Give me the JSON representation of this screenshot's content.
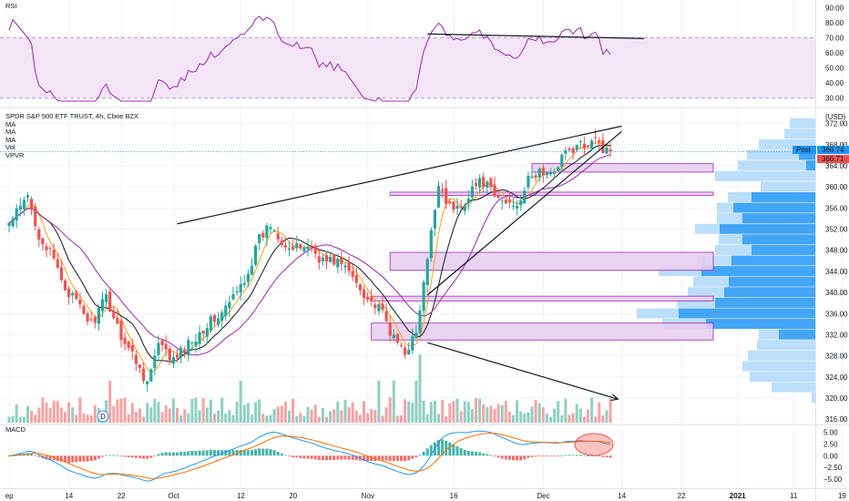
{
  "panes": {
    "rsi_label": "RSI",
    "macd_label": "MACD"
  },
  "legend": {
    "title": "SPDR S&P 500 ETF TRUST, 4h, Cboe BZX",
    "items": [
      "MA",
      "MA",
      "MA",
      "Vol",
      "VPVR"
    ]
  },
  "price_tags": {
    "currency": "USD",
    "post_label": "Post",
    "post_value": "366.74",
    "last_value": "366.71"
  },
  "colors": {
    "up": "#26a69a",
    "down": "#ef5350",
    "volume_up": "#8fcfc3",
    "volume_down": "#f5a3a3",
    "rsi_line": "#9c27b0",
    "rsi_band": "#f3e5f5",
    "ma_fast": "#f7a21b",
    "ma_mid": "#131722",
    "ma_slow": "#9c27b0",
    "vp_dark": "#42a5f5",
    "vp_light": "#bbdefb",
    "zone_fill": "#e6cdf0",
    "zone_stroke": "#9c27b0",
    "macd_line": "#2196f3",
    "signal_line": "#ff6d00",
    "post_tag": "#2196f3",
    "last_tag": "#ef5350"
  },
  "chart_data": {
    "type": "candlestick",
    "symbol": "SPDR S&P 500 ETF TRUST",
    "timeframe": "4h",
    "exchange": "Cboe BZX",
    "x_axis": {
      "tick_labels": [
        "ep",
        "14",
        "22",
        "Oct",
        "12",
        "20",
        "Nov",
        "16",
        "Dec",
        "14",
        "22",
        "2021",
        "11",
        "19"
      ],
      "tick_dates": [
        "2020-09-01",
        "2020-09-14",
        "2020-09-22",
        "2020-10-01",
        "2020-10-12",
        "2020-10-20",
        "2020-11-02",
        "2020-11-16",
        "2020-12-01",
        "2020-12-14",
        "2020-12-22",
        "2021-01-01",
        "2021-01-11",
        "2021-01-19"
      ]
    },
    "price_axis": {
      "unit": "USD",
      "ticks": [
        316,
        320,
        324,
        328,
        332,
        336,
        340,
        344,
        348,
        352,
        356,
        360,
        364,
        368,
        372
      ],
      "range": [
        315,
        374
      ]
    },
    "rsi_axis": {
      "ticks": [
        30,
        40,
        50,
        60,
        70,
        80,
        90
      ],
      "range": [
        25,
        95
      ],
      "band": [
        30,
        70
      ]
    },
    "macd_axis": {
      "ticks": [
        5.0,
        2.5,
        0.0,
        -2.5,
        -5.0
      ],
      "range": [
        -6.2,
        6.5
      ]
    },
    "price_anchors": [
      [
        0,
        353
      ],
      [
        3,
        356
      ],
      [
        5,
        358
      ],
      [
        8,
        351
      ],
      [
        12,
        346
      ],
      [
        15,
        341
      ],
      [
        18,
        338
      ],
      [
        22,
        334
      ],
      [
        26,
        339
      ],
      [
        30,
        332
      ],
      [
        34,
        327
      ],
      [
        37,
        323
      ],
      [
        40,
        330
      ],
      [
        44,
        327
      ],
      [
        49,
        331
      ],
      [
        53,
        334
      ],
      [
        57,
        336
      ],
      [
        61,
        340
      ],
      [
        64,
        344
      ],
      [
        67,
        350
      ],
      [
        70,
        353
      ],
      [
        73,
        350
      ],
      [
        76,
        348
      ],
      [
        80,
        349
      ],
      [
        84,
        346
      ],
      [
        88,
        346
      ],
      [
        92,
        343
      ],
      [
        96,
        339
      ],
      [
        100,
        336
      ],
      [
        103,
        331
      ],
      [
        106,
        329
      ],
      [
        109,
        332
      ],
      [
        112,
        346
      ],
      [
        115,
        361
      ],
      [
        118,
        356
      ],
      [
        121,
        356
      ],
      [
        124,
        360
      ],
      [
        127,
        361
      ],
      [
        130,
        358
      ],
      [
        133,
        357
      ],
      [
        136,
        357
      ],
      [
        139,
        361
      ],
      [
        142,
        363
      ],
      [
        145,
        362
      ],
      [
        148,
        366
      ],
      [
        151,
        367
      ],
      [
        154,
        368
      ],
      [
        157,
        370
      ],
      [
        159,
        367
      ],
      [
        161,
        366.7
      ]
    ],
    "ma_fast_period": 5,
    "ma_mid_period": 10,
    "ma_slow_period": 20,
    "volume_profile": [
      {
        "price": 372,
        "total": 28,
        "inner": 0
      },
      {
        "price": 370,
        "total": 34,
        "inner": 0
      },
      {
        "price": 368,
        "total": 62,
        "inner": 0
      },
      {
        "price": 366,
        "total": 75,
        "inner": 18
      },
      {
        "price": 364,
        "total": 85,
        "inner": 10
      },
      {
        "price": 362,
        "total": 110,
        "inner": 0
      },
      {
        "price": 360,
        "total": 60,
        "inner": 0
      },
      {
        "price": 358,
        "total": 96,
        "inner": 70
      },
      {
        "price": 356,
        "total": 108,
        "inner": 90
      },
      {
        "price": 354,
        "total": 108,
        "inner": 80
      },
      {
        "price": 352,
        "total": 132,
        "inner": 105
      },
      {
        "price": 350,
        "total": 106,
        "inner": 80
      },
      {
        "price": 348,
        "total": 110,
        "inner": 70
      },
      {
        "price": 346,
        "total": 130,
        "inner": 92
      },
      {
        "price": 344,
        "total": 172,
        "inner": 125
      },
      {
        "price": 342,
        "total": 134,
        "inner": 95
      },
      {
        "price": 340,
        "total": 140,
        "inner": 100
      },
      {
        "price": 338,
        "total": 152,
        "inner": 110
      },
      {
        "price": 336,
        "total": 196,
        "inner": 150
      },
      {
        "price": 334,
        "total": 168,
        "inner": 120
      },
      {
        "price": 332,
        "total": 62,
        "inner": 40
      },
      {
        "price": 330,
        "total": 64,
        "inner": 0
      },
      {
        "price": 328,
        "total": 74,
        "inner": 0
      },
      {
        "price": 326,
        "total": 80,
        "inner": 0
      },
      {
        "price": 324,
        "total": 72,
        "inner": 0
      },
      {
        "price": 322,
        "total": 48,
        "inner": 0
      },
      {
        "price": 320,
        "total": 4,
        "inner": 0
      }
    ],
    "zones": [
      {
        "from": 362.8,
        "to": 364.4
      },
      {
        "from": 358.4,
        "to": 359.0
      },
      {
        "from": 344.2,
        "to": 347.6
      },
      {
        "from": 338.4,
        "to": 339.3
      },
      {
        "from": 331.0,
        "to": 334.2
      }
    ],
    "trendlines": [
      {
        "series": "price",
        "from": [
          45,
          353.0
        ],
        "to": [
          164,
          371.5
        ]
      },
      {
        "series": "price",
        "from": [
          112,
          339.5
        ],
        "to": [
          164,
          370.5
        ]
      },
      {
        "series": "price",
        "from": [
          112,
          330.5
        ],
        "to": [
          163,
          319.8
        ],
        "arrow": true
      },
      {
        "series": "rsi",
        "from": [
          112,
          72.5
        ],
        "to": [
          170,
          69.5
        ]
      }
    ],
    "annotations": {
      "macd_highlight_circle": true,
      "event_marker_label": "D"
    }
  }
}
